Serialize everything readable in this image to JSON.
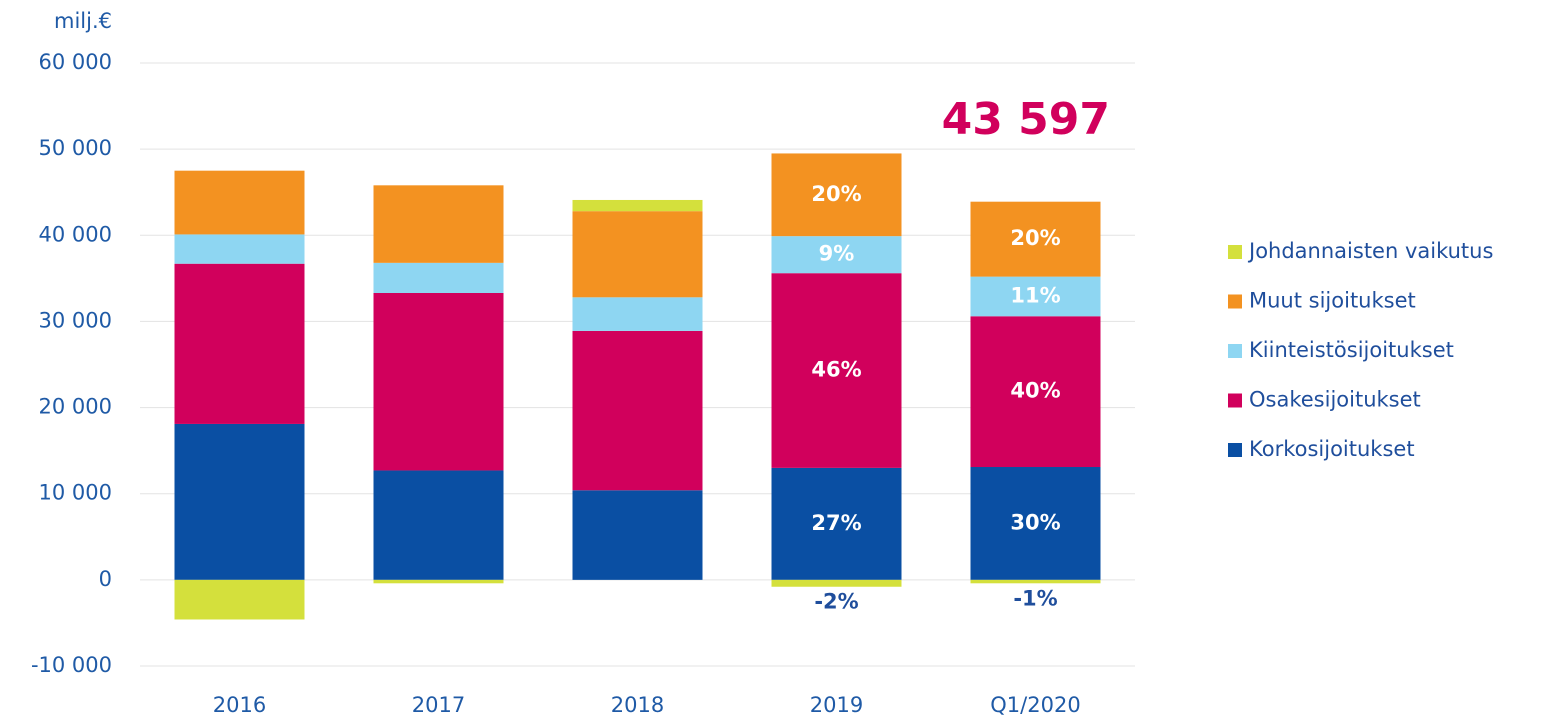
{
  "chart_data": {
    "type": "stacked_bar",
    "y_label": "milj.€",
    "annotation": "43 597",
    "categories": [
      "2016",
      "2017",
      "2018",
      "2019",
      "Q1/2020"
    ],
    "ylim": [
      -10000,
      60000
    ],
    "yticks": [
      {
        "value": -10000,
        "label": "-10 000"
      },
      0,
      {
        "value": 10000,
        "label": "10 000"
      },
      {
        "value": 20000,
        "label": "20 000"
      },
      {
        "value": 30000,
        "label": "30 000"
      },
      {
        "value": 40000,
        "label": "40 000"
      },
      {
        "value": 50000,
        "label": "50 000"
      },
      {
        "value": 60000,
        "label": "60 000"
      }
    ],
    "grid": true,
    "legend": "right",
    "series": [
      {
        "name": "Korkosijoitukset",
        "color": "#0a4fa3",
        "values": [
          18100,
          12700,
          10400,
          13000,
          13100
        ],
        "value_labels": [
          null,
          null,
          null,
          "27%",
          "30%"
        ]
      },
      {
        "name": "Osakesijoitukset",
        "color": "#d1005c",
        "values": [
          18600,
          20600,
          18500,
          22600,
          17500
        ],
        "value_labels": [
          null,
          null,
          null,
          "46%",
          "40%"
        ]
      },
      {
        "name": "Kiinteistösijoitukset",
        "color": "#8ed6f2",
        "values": [
          3400,
          3500,
          3900,
          4300,
          4600
        ],
        "value_labels": [
          null,
          null,
          null,
          "9%",
          "11%"
        ]
      },
      {
        "name": "Muut sijoitukset",
        "color": "#f39221",
        "values": [
          7400,
          9000,
          10000,
          9600,
          8700
        ],
        "value_labels": [
          null,
          null,
          null,
          "20%",
          "20%"
        ]
      },
      {
        "name": "Johdannaisten vaikutus",
        "color": "#d4e03c",
        "values": [
          -4600,
          -400,
          1300,
          -800,
          -400
        ],
        "value_labels": [
          null,
          null,
          null,
          "-2%",
          "-1%"
        ]
      }
    ]
  }
}
